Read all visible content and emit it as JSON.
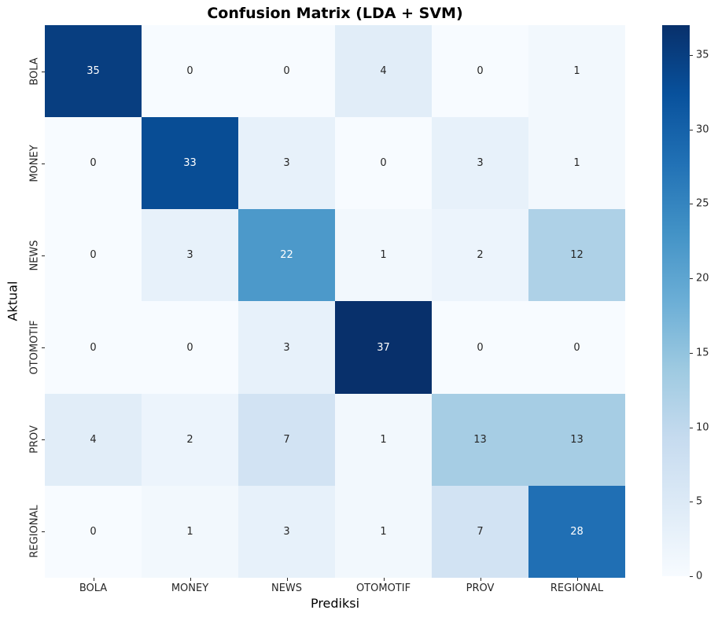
{
  "title": "Confusion Matrix (LDA + SVM)",
  "chart_data": {
    "type": "heatmap",
    "title": "Confusion Matrix (LDA + SVM)",
    "xlabel": "Prediksi",
    "ylabel": "Aktual",
    "x_categories": [
      "BOLA",
      "MONEY",
      "NEWS",
      "OTOMOTIF",
      "PROV",
      "REGIONAL"
    ],
    "y_categories": [
      "BOLA",
      "MONEY",
      "NEWS",
      "OTOMOTIF",
      "PROV",
      "REGIONAL"
    ],
    "matrix": [
      [
        35,
        0,
        0,
        4,
        0,
        1
      ],
      [
        0,
        33,
        3,
        0,
        3,
        1
      ],
      [
        0,
        3,
        22,
        1,
        2,
        12
      ],
      [
        0,
        0,
        3,
        37,
        0,
        0
      ],
      [
        4,
        2,
        7,
        1,
        13,
        13
      ],
      [
        0,
        1,
        3,
        1,
        7,
        28
      ]
    ],
    "colormap": "Blues",
    "vmin": 0,
    "vmax": 37,
    "colorbar_ticks": [
      0,
      5,
      10,
      15,
      20,
      25,
      30,
      35
    ],
    "colorbar_position": "right",
    "grid": false,
    "annotated": true
  },
  "colors": {
    "blues_anchors": [
      "#f7fbff",
      "#deebf7",
      "#c6dbef",
      "#9ecae1",
      "#6baed6",
      "#4292c6",
      "#2171b5",
      "#08519c",
      "#08306b"
    ],
    "annotation_dark": "#262626",
    "annotation_light": "#ffffff",
    "tick_color": "#262626",
    "background": "#ffffff"
  }
}
